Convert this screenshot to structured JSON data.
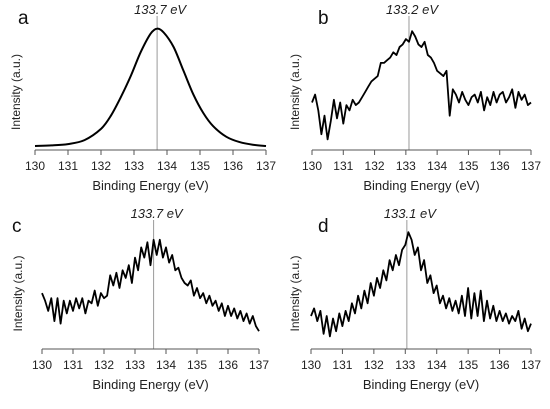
{
  "chart_data": [
    {
      "type": "line",
      "panel": "a",
      "annotation": "133.7 eV",
      "marker_x": 133.7,
      "xlabel": "Binding Energy (eV)",
      "ylabel": "Intensity (a.u.)",
      "xlim": [
        130,
        137
      ],
      "ylim": [
        0,
        1
      ],
      "xticks": [
        130,
        131,
        132,
        133,
        134,
        135,
        136,
        137
      ],
      "series": [
        {
          "x": [
            130,
            130.5,
            131,
            131.5,
            132,
            132.3,
            132.6,
            132.9,
            133.2,
            133.5,
            133.7,
            133.9,
            134.2,
            134.5,
            134.8,
            135.1,
            135.4,
            135.8,
            136.2,
            136.6,
            137
          ],
          "y": [
            0.03,
            0.035,
            0.045,
            0.075,
            0.16,
            0.26,
            0.4,
            0.56,
            0.74,
            0.88,
            0.92,
            0.89,
            0.78,
            0.6,
            0.42,
            0.28,
            0.18,
            0.1,
            0.06,
            0.04,
            0.03
          ]
        }
      ]
    },
    {
      "type": "line",
      "panel": "b",
      "annotation": "133.2 eV",
      "marker_x": 133.1,
      "xlabel": "Binding Energy (eV)",
      "ylabel": "Intensity (a.u.)",
      "xlim": [
        130,
        137
      ],
      "ylim": [
        0,
        1
      ],
      "xticks": [
        130,
        131,
        132,
        133,
        134,
        135,
        136,
        137
      ],
      "series": [
        {
          "x": [
            130,
            130.1,
            130.2,
            130.3,
            130.4,
            130.5,
            130.6,
            130.7,
            130.8,
            130.9,
            131.0,
            131.1,
            131.2,
            131.3,
            131.4,
            131.5,
            131.6,
            131.7,
            131.8,
            131.9,
            132.0,
            132.1,
            132.2,
            132.3,
            132.4,
            132.5,
            132.6,
            132.7,
            132.8,
            132.9,
            133.0,
            133.1,
            133.2,
            133.3,
            133.4,
            133.5,
            133.6,
            133.7,
            133.8,
            133.9,
            134.0,
            134.1,
            134.2,
            134.3,
            134.4,
            134.5,
            134.6,
            134.7,
            134.8,
            134.9,
            135.0,
            135.1,
            135.2,
            135.3,
            135.4,
            135.5,
            135.6,
            135.7,
            135.8,
            135.9,
            136.0,
            136.1,
            136.2,
            136.3,
            136.4,
            136.5,
            136.6,
            136.7,
            136.8,
            136.9,
            137.0
          ],
          "y": [
            0.36,
            0.42,
            0.3,
            0.12,
            0.26,
            0.08,
            0.22,
            0.38,
            0.24,
            0.36,
            0.2,
            0.34,
            0.3,
            0.38,
            0.34,
            0.36,
            0.4,
            0.44,
            0.48,
            0.52,
            0.54,
            0.56,
            0.66,
            0.66,
            0.68,
            0.7,
            0.74,
            0.72,
            0.78,
            0.8,
            0.84,
            0.82,
            0.9,
            0.86,
            0.8,
            0.78,
            0.82,
            0.72,
            0.7,
            0.66,
            0.6,
            0.58,
            0.56,
            0.6,
            0.26,
            0.46,
            0.42,
            0.36,
            0.44,
            0.38,
            0.34,
            0.4,
            0.42,
            0.36,
            0.44,
            0.3,
            0.4,
            0.34,
            0.44,
            0.36,
            0.42,
            0.44,
            0.36,
            0.4,
            0.46,
            0.32,
            0.44,
            0.38,
            0.42,
            0.34,
            0.36
          ]
        }
      ]
    },
    {
      "type": "line",
      "panel": "c",
      "annotation": "133.7 eV",
      "marker_x": 133.6,
      "xlabel": "Binding Energy (eV)",
      "ylabel": "Intensity (a.u.)",
      "xlim": [
        130,
        137
      ],
      "ylim": [
        0,
        1
      ],
      "xticks": [
        130,
        131,
        132,
        133,
        134,
        135,
        136,
        137
      ],
      "series": [
        {
          "x": [
            130,
            130.1,
            130.2,
            130.3,
            130.4,
            130.5,
            130.6,
            130.7,
            130.8,
            130.9,
            131.0,
            131.1,
            131.2,
            131.3,
            131.4,
            131.5,
            131.6,
            131.7,
            131.8,
            131.9,
            132.0,
            132.1,
            132.2,
            132.3,
            132.4,
            132.5,
            132.6,
            132.7,
            132.8,
            132.9,
            133.0,
            133.1,
            133.2,
            133.3,
            133.4,
            133.5,
            133.6,
            133.7,
            133.8,
            133.9,
            134.0,
            134.1,
            134.2,
            134.3,
            134.4,
            134.5,
            134.6,
            134.7,
            134.8,
            134.9,
            135.0,
            135.1,
            135.2,
            135.3,
            135.4,
            135.5,
            135.6,
            135.7,
            135.8,
            135.9,
            136.0,
            136.1,
            136.2,
            136.3,
            136.4,
            136.5,
            136.6,
            136.7,
            136.8,
            136.9,
            137.0
          ],
          "y": [
            0.44,
            0.38,
            0.3,
            0.4,
            0.22,
            0.4,
            0.2,
            0.38,
            0.28,
            0.38,
            0.3,
            0.4,
            0.32,
            0.4,
            0.28,
            0.38,
            0.36,
            0.46,
            0.34,
            0.44,
            0.4,
            0.42,
            0.58,
            0.5,
            0.6,
            0.48,
            0.62,
            0.56,
            0.66,
            0.52,
            0.72,
            0.62,
            0.8,
            0.72,
            0.84,
            0.66,
            0.86,
            0.74,
            0.86,
            0.72,
            0.8,
            0.68,
            0.74,
            0.62,
            0.64,
            0.56,
            0.52,
            0.5,
            0.54,
            0.42,
            0.48,
            0.4,
            0.44,
            0.36,
            0.42,
            0.34,
            0.38,
            0.3,
            0.36,
            0.26,
            0.34,
            0.26,
            0.32,
            0.24,
            0.3,
            0.22,
            0.28,
            0.2,
            0.26,
            0.18,
            0.14
          ]
        }
      ]
    },
    {
      "type": "line",
      "panel": "d",
      "annotation": "133.1 eV",
      "marker_x": 133.05,
      "xlabel": "Binding Energy (eV)",
      "ylabel": "Intensity (a.u.)",
      "xlim": [
        130,
        137
      ],
      "ylim": [
        0,
        1
      ],
      "xticks": [
        130,
        131,
        132,
        133,
        134,
        135,
        136,
        137
      ],
      "series": [
        {
          "x": [
            130,
            130.1,
            130.2,
            130.3,
            130.4,
            130.5,
            130.6,
            130.7,
            130.8,
            130.9,
            131.0,
            131.1,
            131.2,
            131.3,
            131.4,
            131.5,
            131.6,
            131.7,
            131.8,
            131.9,
            132.0,
            132.1,
            132.2,
            132.3,
            132.4,
            132.5,
            132.6,
            132.7,
            132.8,
            132.9,
            133.0,
            133.1,
            133.2,
            133.3,
            133.4,
            133.5,
            133.6,
            133.7,
            133.8,
            133.9,
            134.0,
            134.1,
            134.2,
            134.3,
            134.4,
            134.5,
            134.6,
            134.7,
            134.8,
            134.9,
            135.0,
            135.1,
            135.2,
            135.3,
            135.4,
            135.5,
            135.6,
            135.7,
            135.8,
            135.9,
            136.0,
            136.1,
            136.2,
            136.3,
            136.4,
            136.5,
            136.6,
            136.7,
            136.8,
            136.9,
            137.0
          ],
          "y": [
            0.26,
            0.32,
            0.22,
            0.3,
            0.12,
            0.26,
            0.1,
            0.24,
            0.14,
            0.28,
            0.18,
            0.3,
            0.22,
            0.36,
            0.28,
            0.42,
            0.32,
            0.46,
            0.36,
            0.52,
            0.42,
            0.56,
            0.48,
            0.62,
            0.54,
            0.7,
            0.62,
            0.74,
            0.66,
            0.78,
            0.82,
            0.92,
            0.86,
            0.74,
            0.8,
            0.62,
            0.7,
            0.52,
            0.58,
            0.44,
            0.5,
            0.36,
            0.42,
            0.32,
            0.4,
            0.3,
            0.38,
            0.28,
            0.42,
            0.26,
            0.48,
            0.24,
            0.44,
            0.26,
            0.46,
            0.22,
            0.38,
            0.24,
            0.34,
            0.22,
            0.3,
            0.22,
            0.28,
            0.2,
            0.26,
            0.22,
            0.3,
            0.16,
            0.24,
            0.14,
            0.2
          ]
        }
      ]
    }
  ]
}
